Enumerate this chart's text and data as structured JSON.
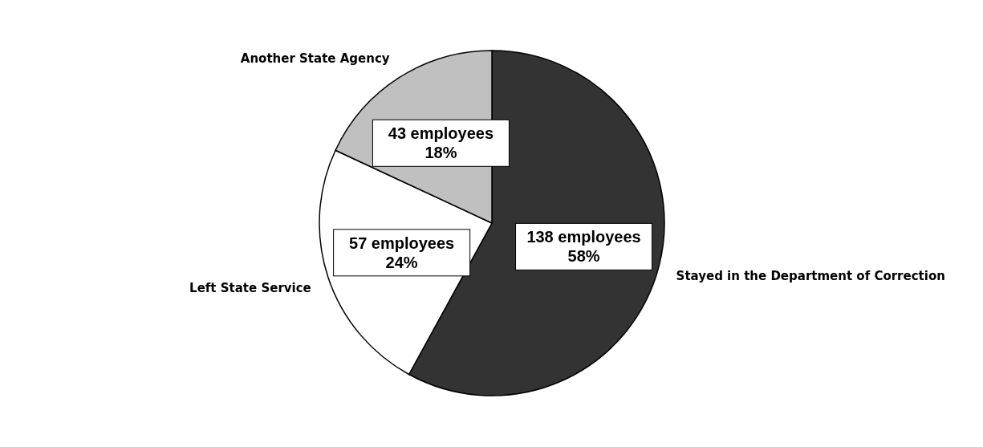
{
  "chart_data": {
    "type": "pie",
    "categories": [
      "Stayed in the Department of Correction",
      "Left State Service",
      "Another State Agency"
    ],
    "values": [
      138,
      57,
      43
    ],
    "colors": [
      "#333333",
      "#ffffff",
      "#c0c0c0"
    ],
    "value_labels": [
      "138 employees\n58%",
      "57 employees\n24%",
      "43 employees\n18%"
    ],
    "legend": false
  }
}
